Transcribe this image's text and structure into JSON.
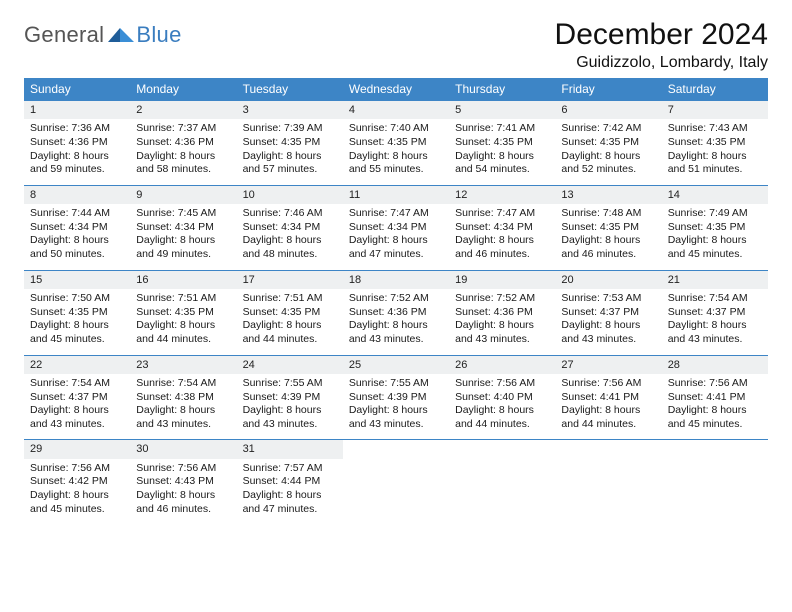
{
  "brand": {
    "general": "General",
    "blue": "Blue"
  },
  "header": {
    "title": "December 2024",
    "location": "Guidizzolo, Lombardy, Italy"
  },
  "style": {
    "header_bg": "#3d85c6",
    "header_text": "#ffffff",
    "daynum_bg": "#eef0f1",
    "row_border": "#3d85c6",
    "title_fontsize": 30,
    "location_fontsize": 16,
    "th_fontsize": 12,
    "cell_fontsize": 10.5
  },
  "days_of_week": [
    "Sunday",
    "Monday",
    "Tuesday",
    "Wednesday",
    "Thursday",
    "Friday",
    "Saturday"
  ],
  "weeks": [
    [
      {
        "n": "1",
        "sunrise": "7:36 AM",
        "sunset": "4:36 PM",
        "daylight": "8 hours and 59 minutes."
      },
      {
        "n": "2",
        "sunrise": "7:37 AM",
        "sunset": "4:36 PM",
        "daylight": "8 hours and 58 minutes."
      },
      {
        "n": "3",
        "sunrise": "7:39 AM",
        "sunset": "4:35 PM",
        "daylight": "8 hours and 57 minutes."
      },
      {
        "n": "4",
        "sunrise": "7:40 AM",
        "sunset": "4:35 PM",
        "daylight": "8 hours and 55 minutes."
      },
      {
        "n": "5",
        "sunrise": "7:41 AM",
        "sunset": "4:35 PM",
        "daylight": "8 hours and 54 minutes."
      },
      {
        "n": "6",
        "sunrise": "7:42 AM",
        "sunset": "4:35 PM",
        "daylight": "8 hours and 52 minutes."
      },
      {
        "n": "7",
        "sunrise": "7:43 AM",
        "sunset": "4:35 PM",
        "daylight": "8 hours and 51 minutes."
      }
    ],
    [
      {
        "n": "8",
        "sunrise": "7:44 AM",
        "sunset": "4:34 PM",
        "daylight": "8 hours and 50 minutes."
      },
      {
        "n": "9",
        "sunrise": "7:45 AM",
        "sunset": "4:34 PM",
        "daylight": "8 hours and 49 minutes."
      },
      {
        "n": "10",
        "sunrise": "7:46 AM",
        "sunset": "4:34 PM",
        "daylight": "8 hours and 48 minutes."
      },
      {
        "n": "11",
        "sunrise": "7:47 AM",
        "sunset": "4:34 PM",
        "daylight": "8 hours and 47 minutes."
      },
      {
        "n": "12",
        "sunrise": "7:47 AM",
        "sunset": "4:34 PM",
        "daylight": "8 hours and 46 minutes."
      },
      {
        "n": "13",
        "sunrise": "7:48 AM",
        "sunset": "4:35 PM",
        "daylight": "8 hours and 46 minutes."
      },
      {
        "n": "14",
        "sunrise": "7:49 AM",
        "sunset": "4:35 PM",
        "daylight": "8 hours and 45 minutes."
      }
    ],
    [
      {
        "n": "15",
        "sunrise": "7:50 AM",
        "sunset": "4:35 PM",
        "daylight": "8 hours and 45 minutes."
      },
      {
        "n": "16",
        "sunrise": "7:51 AM",
        "sunset": "4:35 PM",
        "daylight": "8 hours and 44 minutes."
      },
      {
        "n": "17",
        "sunrise": "7:51 AM",
        "sunset": "4:35 PM",
        "daylight": "8 hours and 44 minutes."
      },
      {
        "n": "18",
        "sunrise": "7:52 AM",
        "sunset": "4:36 PM",
        "daylight": "8 hours and 43 minutes."
      },
      {
        "n": "19",
        "sunrise": "7:52 AM",
        "sunset": "4:36 PM",
        "daylight": "8 hours and 43 minutes."
      },
      {
        "n": "20",
        "sunrise": "7:53 AM",
        "sunset": "4:37 PM",
        "daylight": "8 hours and 43 minutes."
      },
      {
        "n": "21",
        "sunrise": "7:54 AM",
        "sunset": "4:37 PM",
        "daylight": "8 hours and 43 minutes."
      }
    ],
    [
      {
        "n": "22",
        "sunrise": "7:54 AM",
        "sunset": "4:37 PM",
        "daylight": "8 hours and 43 minutes."
      },
      {
        "n": "23",
        "sunrise": "7:54 AM",
        "sunset": "4:38 PM",
        "daylight": "8 hours and 43 minutes."
      },
      {
        "n": "24",
        "sunrise": "7:55 AM",
        "sunset": "4:39 PM",
        "daylight": "8 hours and 43 minutes."
      },
      {
        "n": "25",
        "sunrise": "7:55 AM",
        "sunset": "4:39 PM",
        "daylight": "8 hours and 43 minutes."
      },
      {
        "n": "26",
        "sunrise": "7:56 AM",
        "sunset": "4:40 PM",
        "daylight": "8 hours and 44 minutes."
      },
      {
        "n": "27",
        "sunrise": "7:56 AM",
        "sunset": "4:41 PM",
        "daylight": "8 hours and 44 minutes."
      },
      {
        "n": "28",
        "sunrise": "7:56 AM",
        "sunset": "4:41 PM",
        "daylight": "8 hours and 45 minutes."
      }
    ],
    [
      {
        "n": "29",
        "sunrise": "7:56 AM",
        "sunset": "4:42 PM",
        "daylight": "8 hours and 45 minutes."
      },
      {
        "n": "30",
        "sunrise": "7:56 AM",
        "sunset": "4:43 PM",
        "daylight": "8 hours and 46 minutes."
      },
      {
        "n": "31",
        "sunrise": "7:57 AM",
        "sunset": "4:44 PM",
        "daylight": "8 hours and 47 minutes."
      },
      null,
      null,
      null,
      null
    ]
  ],
  "labels": {
    "sunrise": "Sunrise:",
    "sunset": "Sunset:",
    "daylight": "Daylight:"
  }
}
